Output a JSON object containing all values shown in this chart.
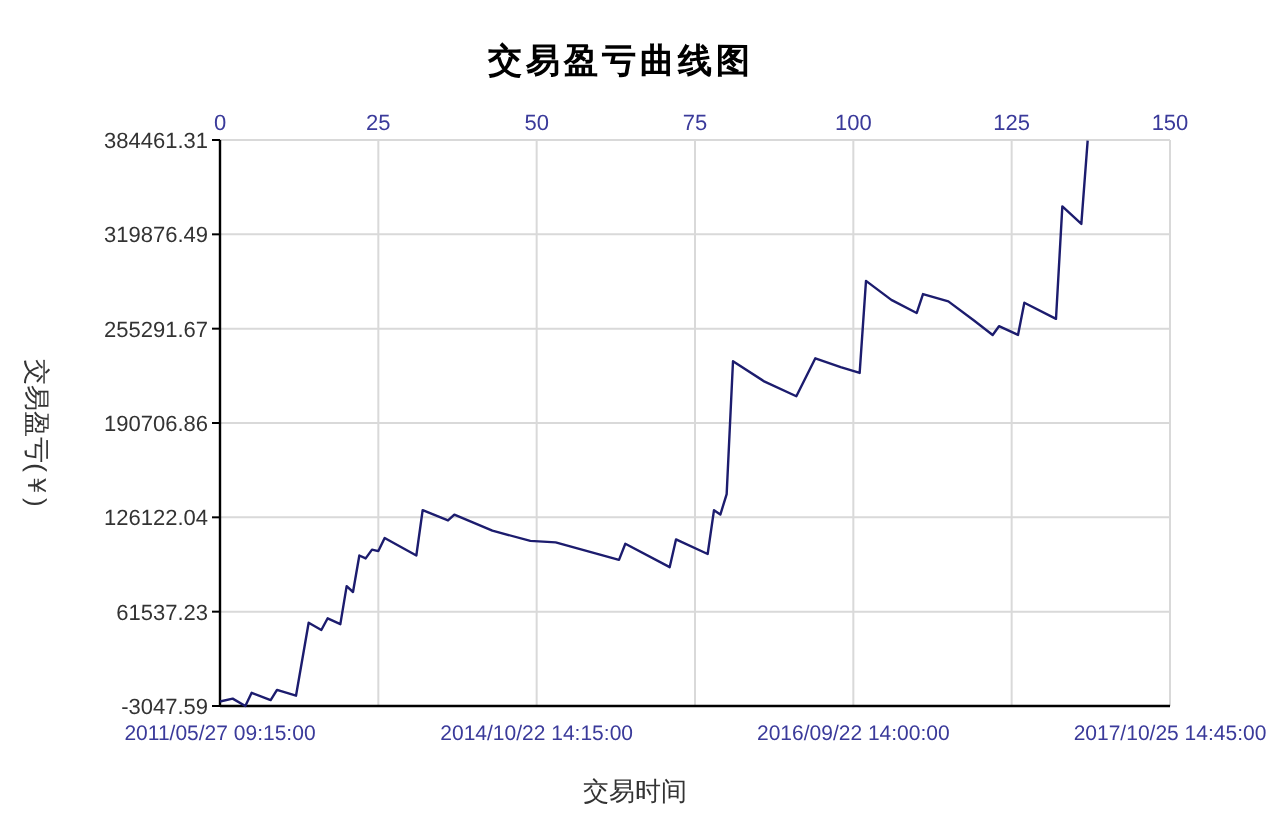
{
  "chart_data": {
    "type": "line",
    "title": "交易盈亏曲线图",
    "xlabel": "交易时间",
    "ylabel": "交易盈亏(￥)",
    "x": [
      0,
      2,
      4,
      5,
      8,
      9,
      12,
      14,
      16,
      17,
      19,
      20,
      21,
      22,
      23,
      24,
      25,
      26,
      31,
      32,
      36,
      37,
      43,
      49,
      53,
      63,
      64,
      71,
      72,
      77,
      78,
      79,
      80,
      81,
      86,
      91,
      94,
      98,
      101,
      102,
      106,
      110,
      111,
      115,
      119,
      122,
      123,
      126,
      127,
      132,
      133,
      136,
      137
    ],
    "series": [
      {
        "color": "#1c1c6e",
        "values": [
          0,
          2000,
          -3000,
          6000,
          1000,
          8000,
          4000,
          54000,
          49000,
          57000,
          53000,
          79000,
          75000,
          100000,
          98000,
          104000,
          103000,
          112000,
          100000,
          131000,
          124000,
          128000,
          117000,
          110000,
          109000,
          97000,
          108000,
          92000,
          111000,
          101000,
          131000,
          128000,
          142000,
          233000,
          219000,
          209000,
          235000,
          229000,
          225000,
          288000,
          275000,
          266000,
          279000,
          274000,
          261000,
          251000,
          257000,
          251000,
          273000,
          262000,
          339000,
          327000,
          384000
        ]
      }
    ],
    "xlim": [
      0,
      150
    ],
    "xticks": [
      0,
      25,
      50,
      75,
      100,
      125,
      150
    ],
    "annotations": [
      "2011/05/27 09:15:00",
      "2014/10/22 14:15:00",
      "2016/09/22 14:00:00",
      "2017/10/25 14:45:00"
    ],
    "ylim": [
      -3047.59,
      384461.31
    ],
    "yticks": [
      -3047.59,
      61537.23,
      126122.04,
      190706.86,
      255291.67,
      319876.49,
      384461.31
    ],
    "grid": true,
    "marker": "none",
    "line_style": "solid"
  }
}
